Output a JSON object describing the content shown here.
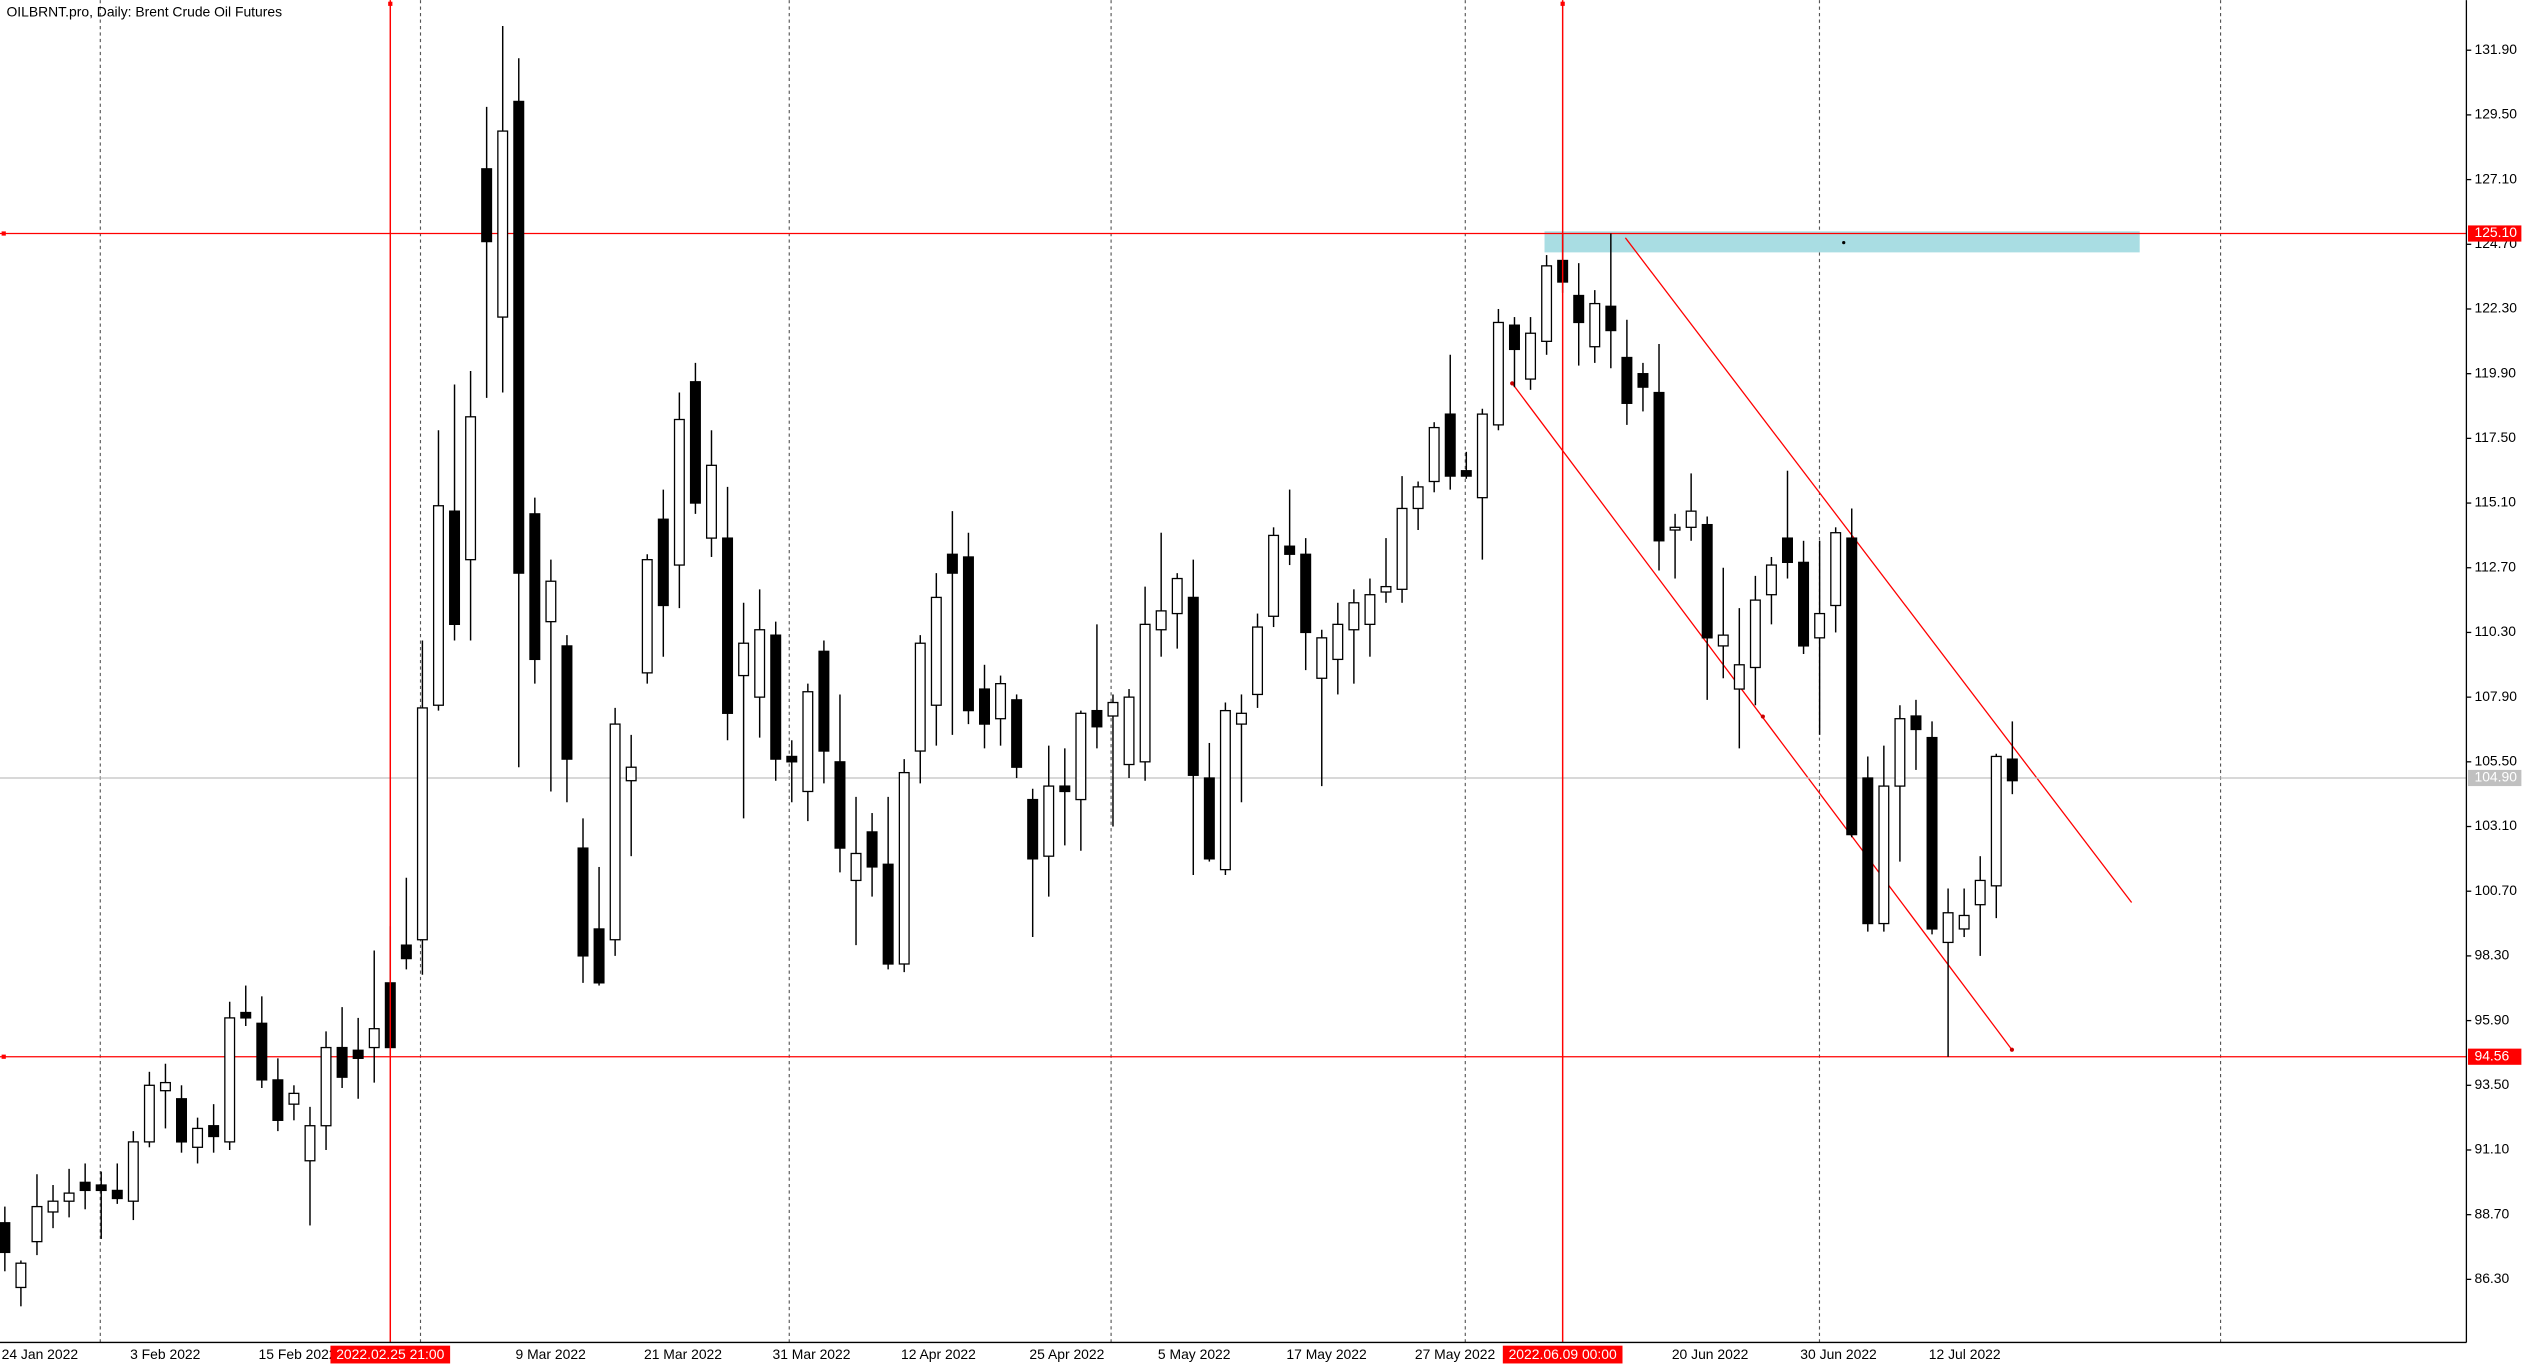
{
  "chart_data": {
    "type": "candlestick",
    "title": "OILBRNT.pro, Daily:  Brent Crude Oil Futures",
    "categories": [
      "24 Jan 2022",
      null,
      null,
      null,
      null,
      null,
      null,
      null,
      "3 Feb 2022",
      null,
      null,
      null,
      null,
      null,
      null,
      null,
      "15 Feb 2022",
      null,
      null,
      null,
      null,
      null,
      null,
      null,
      null,
      null,
      null,
      null,
      null,
      null,
      null,
      null,
      "9 Mar 2022",
      null,
      null,
      null,
      null,
      null,
      null,
      null,
      "21 Mar 2022",
      null,
      null,
      null,
      null,
      null,
      null,
      null,
      "31 Mar 2022",
      null,
      null,
      null,
      null,
      null,
      null,
      null,
      "12 Apr 2022",
      null,
      null,
      null,
      null,
      null,
      null,
      null,
      "25 Apr 2022",
      null,
      null,
      null,
      null,
      null,
      null,
      null,
      "5 May 2022",
      null,
      null,
      null,
      null,
      null,
      null,
      null,
      "17 May 2022",
      null,
      null,
      null,
      null,
      null,
      null,
      null,
      "27 May 2022",
      null,
      null,
      null,
      null,
      null,
      null,
      null,
      null,
      null,
      null,
      null,
      null,
      null,
      null,
      null,
      "20 Jun 2022",
      null,
      null,
      null,
      null,
      null,
      null,
      null,
      "30 Jun 2022",
      null,
      null,
      null,
      null,
      null,
      null,
      null,
      "12 Jul 2022",
      null,
      null,
      null,
      null,
      null
    ],
    "open": [
      88.4,
      86.0,
      87.7,
      88.8,
      89.2,
      89.9,
      89.8,
      89.6,
      89.2,
      91.4,
      93.3,
      93.0,
      91.2,
      92.0,
      91.4,
      96.2,
      95.8,
      93.7,
      92.8,
      90.7,
      92.0,
      94.9,
      94.8,
      94.9,
      97.3,
      98.7,
      98.9,
      107.6,
      114.8,
      113.0,
      127.5,
      122.0,
      130.0,
      114.7,
      110.7,
      109.8,
      102.3,
      99.3,
      98.9,
      104.8,
      108.8,
      114.5,
      112.8,
      119.6,
      113.8,
      113.8,
      108.7,
      107.9,
      110.2,
      105.7,
      104.4,
      109.6,
      105.5,
      101.1,
      102.9,
      101.7,
      98.0,
      105.9,
      107.6,
      113.2,
      113.1,
      108.2,
      107.1,
      107.8,
      104.1,
      102.0,
      104.6,
      104.1,
      107.4,
      107.2,
      105.4,
      105.5,
      110.4,
      111.0,
      111.6,
      104.9,
      101.5,
      106.9,
      108.0,
      110.9,
      113.5,
      113.2,
      108.6,
      109.3,
      110.4,
      110.6,
      111.8,
      111.9,
      114.9,
      115.9,
      118.4,
      116.3,
      115.3,
      118.0,
      121.7,
      119.7,
      121.1,
      124.1,
      122.8,
      120.9,
      122.4,
      120.5,
      119.9,
      119.2,
      114.1,
      114.2,
      114.3,
      109.8,
      108.2,
      109.0,
      111.7,
      113.8,
      112.9,
      110.1,
      111.3,
      113.8,
      104.9,
      99.5,
      104.6,
      107.2,
      106.4,
      98.8,
      99.3,
      100.2,
      100.9,
      105.6
    ],
    "high": [
      89.0,
      87.0,
      90.2,
      89.8,
      90.4,
      90.6,
      90.3,
      90.6,
      91.8,
      94.0,
      94.3,
      93.5,
      92.3,
      92.8,
      96.6,
      97.2,
      96.8,
      94.5,
      93.5,
      92.7,
      95.5,
      96.4,
      96.0,
      98.5,
      99.4,
      101.2,
      110.0,
      117.8,
      119.5,
      120.0,
      129.8,
      132.8,
      131.6,
      115.3,
      113.0,
      110.2,
      103.4,
      101.6,
      107.5,
      106.5,
      113.2,
      115.6,
      119.2,
      120.3,
      117.8,
      115.7,
      111.4,
      111.9,
      110.7,
      106.3,
      108.4,
      110.0,
      108.0,
      104.2,
      103.6,
      104.2,
      105.6,
      110.2,
      112.5,
      114.8,
      114.0,
      109.1,
      108.7,
      108.0,
      104.5,
      106.1,
      106.0,
      107.4,
      110.6,
      108.0,
      108.2,
      112.0,
      114.0,
      112.5,
      113.0,
      106.2,
      107.7,
      108.0,
      111.0,
      114.2,
      115.6,
      113.8,
      110.4,
      111.4,
      111.9,
      112.3,
      113.8,
      116.1,
      115.9,
      118.1,
      120.6,
      117.0,
      118.6,
      122.3,
      122.0,
      122.0,
      124.3,
      125.1,
      124.0,
      123.0,
      125.1,
      121.9,
      120.3,
      121.0,
      114.7,
      116.2,
      114.6,
      112.7,
      111.2,
      112.4,
      113.1,
      116.3,
      113.7,
      113.7,
      114.2,
      114.9,
      105.7,
      106.1,
      107.6,
      107.8,
      107.0,
      100.8,
      100.8,
      102.0,
      105.8,
      107.0
    ],
    "low": [
      86.6,
      85.3,
      87.2,
      88.2,
      88.6,
      88.9,
      87.8,
      89.1,
      88.5,
      91.2,
      91.9,
      91.0,
      90.6,
      91.0,
      91.1,
      95.7,
      93.4,
      91.8,
      92.2,
      88.3,
      91.1,
      93.4,
      93.0,
      93.6,
      94.6,
      97.8,
      97.6,
      107.4,
      110.0,
      110.0,
      119.0,
      119.2,
      105.3,
      108.4,
      104.4,
      104.0,
      97.3,
      97.2,
      98.3,
      102.0,
      108.4,
      109.4,
      111.2,
      114.7,
      113.1,
      106.3,
      103.4,
      106.4,
      104.8,
      104.0,
      103.3,
      104.7,
      101.4,
      98.7,
      100.5,
      97.8,
      97.7,
      104.7,
      106.1,
      106.5,
      106.9,
      106.0,
      106.1,
      104.9,
      99.0,
      100.5,
      102.4,
      102.2,
      106.0,
      103.1,
      104.9,
      104.8,
      109.4,
      109.7,
      101.3,
      101.8,
      101.3,
      104.0,
      107.5,
      110.5,
      112.8,
      108.9,
      104.6,
      108.0,
      108.4,
      109.4,
      111.4,
      111.4,
      114.1,
      115.5,
      115.6,
      116.0,
      113.0,
      117.8,
      119.4,
      119.3,
      120.6,
      122.9,
      120.2,
      120.3,
      120.1,
      118.0,
      118.5,
      112.6,
      112.3,
      113.7,
      107.8,
      108.6,
      106.0,
      107.6,
      110.6,
      112.3,
      109.5,
      106.5,
      110.3,
      102.7,
      99.2,
      99.2,
      101.8,
      105.2,
      99.1,
      94.56,
      99.0,
      98.3,
      99.7,
      104.3
    ],
    "close": [
      87.3,
      86.9,
      89.0,
      89.2,
      89.5,
      89.6,
      89.6,
      89.3,
      91.4,
      93.5,
      93.6,
      91.4,
      91.9,
      91.6,
      96.0,
      96.0,
      93.7,
      92.2,
      93.2,
      92.0,
      94.9,
      93.8,
      94.5,
      95.6,
      94.9,
      98.2,
      107.5,
      115.0,
      110.6,
      118.3,
      124.8,
      128.9,
      112.5,
      109.3,
      112.2,
      105.6,
      98.3,
      97.3,
      106.9,
      105.3,
      113.0,
      111.3,
      118.2,
      115.1,
      116.5,
      107.3,
      109.9,
      110.4,
      105.6,
      105.5,
      108.1,
      105.9,
      102.3,
      102.1,
      101.6,
      98.0,
      105.1,
      109.9,
      111.6,
      112.5,
      107.4,
      106.9,
      108.4,
      105.3,
      101.9,
      104.6,
      104.4,
      107.3,
      106.8,
      107.7,
      107.9,
      110.6,
      111.1,
      112.3,
      105.0,
      101.9,
      107.4,
      107.3,
      110.5,
      113.9,
      113.2,
      110.3,
      110.1,
      110.6,
      111.4,
      111.7,
      112.0,
      114.9,
      115.7,
      117.9,
      116.1,
      116.1,
      118.4,
      121.8,
      120.8,
      121.4,
      123.9,
      123.3,
      121.8,
      122.5,
      121.5,
      118.8,
      119.4,
      113.7,
      114.2,
      114.8,
      110.1,
      110.2,
      109.1,
      111.5,
      112.8,
      112.9,
      109.8,
      111.0,
      114.0,
      102.8,
      99.5,
      104.6,
      107.1,
      106.7,
      99.3,
      99.9,
      99.8,
      101.1,
      105.7,
      104.8
    ],
    "up_color": "#ffffff",
    "down_color": "#000000",
    "ylim": [
      83.96,
      133.76
    ],
    "yticks": [
      {
        "value": 131.9,
        "label": "131.90"
      },
      {
        "value": 129.5,
        "label": "129.50"
      },
      {
        "value": 127.1,
        "label": "127.10"
      },
      {
        "value": 124.7,
        "label": "124.70"
      },
      {
        "value": 122.3,
        "label": "122.30"
      },
      {
        "value": 119.9,
        "label": "119.90"
      },
      {
        "value": 117.5,
        "label": "117.50"
      },
      {
        "value": 115.1,
        "label": "115.10"
      },
      {
        "value": 112.7,
        "label": "112.70"
      },
      {
        "value": 110.3,
        "label": "110.30"
      },
      {
        "value": 107.9,
        "label": "107.90"
      },
      {
        "value": 105.5,
        "label": "105.50"
      },
      {
        "value": 103.1,
        "label": "103.10"
      },
      {
        "value": 100.7,
        "label": "100.70"
      },
      {
        "value": 98.3,
        "label": "98.30"
      },
      {
        "value": 95.9,
        "label": "95.90"
      },
      {
        "value": 93.5,
        "label": "93.50"
      },
      {
        "value": 91.1,
        "label": "91.10"
      },
      {
        "value": 88.7,
        "label": "88.70"
      },
      {
        "value": 86.3,
        "label": "86.30"
      }
    ],
    "levels": [
      {
        "value": 125.1,
        "label": "125.10"
      },
      {
        "value": 94.56,
        "label": "94.56"
      }
    ],
    "level_color": "#ff0000",
    "current_price": {
      "value": 104.9,
      "label": "104.90"
    },
    "vlines": [
      {
        "index": 24,
        "label": "2022.02.25 21:00"
      },
      {
        "index": 97,
        "label": "2022.06.09 00:00"
      }
    ]
  }
}
